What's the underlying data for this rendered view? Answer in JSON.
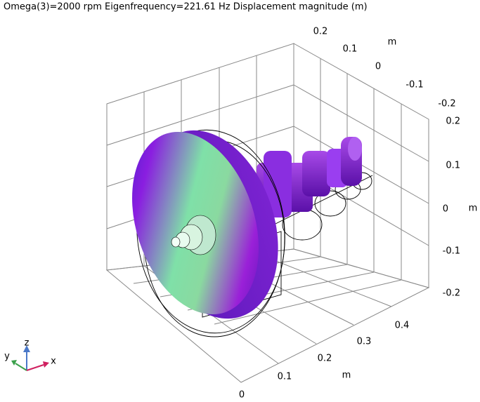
{
  "title": "Omega(3)=2000 rpm Eigenfrequency=221.61 Hz  Displacement magnitude (m)",
  "axes": {
    "y": {
      "ticks": [
        0.2,
        0.1,
        0,
        -0.1,
        -0.2
      ],
      "unit": "m"
    },
    "z": {
      "ticks": [
        0.2,
        0.1,
        0,
        -0.1,
        -0.2
      ],
      "unit": "m"
    },
    "x": {
      "ticks": [
        0,
        0.1,
        0.2,
        0.3,
        0.4
      ],
      "unit": "m"
    }
  },
  "triad": {
    "x": "x",
    "y": "y",
    "z": "z"
  }
}
